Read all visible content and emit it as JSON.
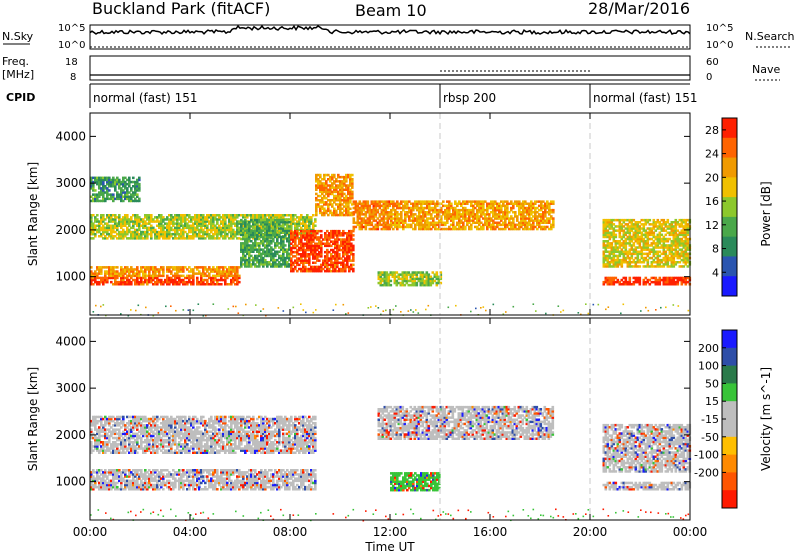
{
  "header": {
    "title": "Buckland Park (fitACF)",
    "beam": "Beam 10",
    "date": "28/Mar/2016"
  },
  "status_panels": {
    "nsky_label": "N.Sky",
    "nsearch_label": "N.Search",
    "nsky_ticks": [
      "10^5",
      "10^0"
    ],
    "nsearch_ticks": [
      "10^5",
      "10^0"
    ],
    "freq_label": "Freq.",
    "freq_unit": "[MHz]",
    "nave_label": "Nave",
    "freq_ticks": [
      "18",
      "8"
    ],
    "nave_ticks": [
      "60",
      "0"
    ],
    "cpid_label": "CPID"
  },
  "cpid_segments": [
    {
      "label": "normal (fast) 151",
      "start_h": 0,
      "end_h": 14
    },
    {
      "label": "rbsp 200",
      "start_h": 14,
      "end_h": 20
    },
    {
      "label": "normal (fast) 151",
      "start_h": 20,
      "end_h": 24
    }
  ],
  "colors": {
    "power_scale": [
      "#1a1aff",
      "#2a55b0",
      "#2a8a5a",
      "#4aa84a",
      "#8cc82c",
      "#f0c000",
      "#f09a00",
      "#ff6400",
      "#ff2000"
    ],
    "velocity_scale": [
      "#ff1a00",
      "#ff5500",
      "#ff8a00",
      "#ffbf00",
      "#bebebe",
      "#bebebe",
      "#38c438",
      "#2a7a4a",
      "#2e4ea8",
      "#1a1aff"
    ],
    "grid_dash": "#c8c8c8"
  },
  "chart_data": [
    {
      "type": "heatmap",
      "name": "power",
      "ylabel": "Slant Range [km]",
      "xlabel": "",
      "xlim": [
        0,
        24
      ],
      "ylim": [
        180,
        4500
      ],
      "yticks": [
        "1000",
        "2000",
        "3000",
        "4000"
      ],
      "yticks_values": [
        1000,
        2000,
        3000,
        4000
      ],
      "colorbar": {
        "label": "Power [dB]",
        "ticks": [
          "4",
          "8",
          "12",
          "16",
          "20",
          "24",
          "28"
        ],
        "range": [
          0,
          30
        ]
      },
      "bands": [
        {
          "t0": 0.0,
          "t1": 6.0,
          "r0": 820,
          "r1": 1000,
          "value": 27
        },
        {
          "t0": 0.0,
          "t1": 6.0,
          "r0": 1000,
          "r1": 1200,
          "value": 22
        },
        {
          "t0": 0.0,
          "t1": 9.0,
          "r0": 1800,
          "r1": 2300,
          "value": 16
        },
        {
          "t0": 0.0,
          "t1": 2.0,
          "r0": 2600,
          "r1": 3100,
          "value": 10
        },
        {
          "t0": 6.0,
          "t1": 8.0,
          "r0": 1200,
          "r1": 2200,
          "value": 11
        },
        {
          "t0": 8.0,
          "t1": 10.5,
          "r0": 1100,
          "r1": 2000,
          "value": 27
        },
        {
          "t0": 9.0,
          "t1": 10.5,
          "r0": 2300,
          "r1": 3200,
          "value": 22
        },
        {
          "t0": 10.5,
          "t1": 12.0,
          "r0": 2000,
          "r1": 2600,
          "value": 23
        },
        {
          "t0": 12.0,
          "t1": 18.5,
          "r0": 2000,
          "r1": 2600,
          "value": 21
        },
        {
          "t0": 11.5,
          "t1": 14.0,
          "r0": 800,
          "r1": 1100,
          "value": 15
        },
        {
          "t0": 20.5,
          "t1": 24.0,
          "r0": 820,
          "r1": 1000,
          "value": 28
        },
        {
          "t0": 20.5,
          "t1": 24.0,
          "r0": 1200,
          "r1": 2200,
          "value": 18
        }
      ]
    },
    {
      "type": "heatmap",
      "name": "velocity",
      "ylabel": "Slant Range [km]",
      "xlabel": "Time UT",
      "xlim": [
        0,
        24
      ],
      "ylim": [
        180,
        4500
      ],
      "yticks": [
        "1000",
        "2000",
        "3000",
        "4000"
      ],
      "yticks_values": [
        1000,
        2000,
        3000,
        4000
      ],
      "xticks": [
        "00:00",
        "04:00",
        "08:00",
        "12:00",
        "16:00",
        "20:00",
        "00:00"
      ],
      "xticks_values": [
        0,
        4,
        8,
        12,
        16,
        20,
        24
      ],
      "colorbar": {
        "label": "Velocity [m s^-1]",
        "ticks": [
          "-200",
          "-100",
          "-50",
          "-15",
          "15",
          "50",
          "100",
          "200"
        ]
      },
      "bands": [
        {
          "t0": 0.0,
          "t1": 9.0,
          "r0": 820,
          "r1": 1250,
          "value": 0
        },
        {
          "t0": 0.0,
          "t1": 9.0,
          "r0": 1600,
          "r1": 2400,
          "value": 0
        },
        {
          "t0": 11.5,
          "t1": 18.5,
          "r0": 1900,
          "r1": 2600,
          "value": 0
        },
        {
          "t0": 12.0,
          "t1": 14.0,
          "r0": 800,
          "r1": 1200,
          "value": 60
        },
        {
          "t0": 20.5,
          "t1": 24.0,
          "r0": 820,
          "r1": 1000,
          "value": 0
        },
        {
          "t0": 20.5,
          "t1": 24.0,
          "r0": 1200,
          "r1": 2200,
          "value": 0
        }
      ]
    }
  ]
}
